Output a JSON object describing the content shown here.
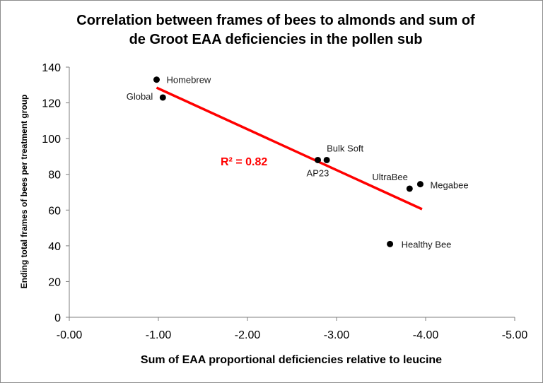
{
  "chart_data": {
    "type": "scatter",
    "title_line1": "Correlation between frames of bees to almonds and sum of",
    "title_line2": "de Groot EAA deficiencies in the pollen sub",
    "xlabel": "Sum of EAA proportional deficiencies relative to leucine",
    "ylabel": "Ending total frames of bees per treatment group",
    "xlim": [
      0,
      -5
    ],
    "ylim": [
      0,
      140
    ],
    "x_reversed": true,
    "x_ticks": [
      "-0.00",
      "-1.00",
      "-2.00",
      "-3.00",
      "-4.00",
      "-5.00"
    ],
    "y_ticks": [
      "0",
      "20",
      "40",
      "60",
      "80",
      "100",
      "120",
      "140"
    ],
    "points": [
      {
        "name": "Homebrew",
        "x": -0.98,
        "y": 133
      },
      {
        "name": "Global",
        "x": -1.05,
        "y": 123
      },
      {
        "name": "AP23",
        "x": -2.79,
        "y": 88
      },
      {
        "name": "Bulk Soft",
        "x": -2.89,
        "y": 88
      },
      {
        "name": "UltraBee",
        "x": -3.82,
        "y": 72
      },
      {
        "name": "Megabee",
        "x": -3.94,
        "y": 74.5
      },
      {
        "name": "Healthy Bee",
        "x": -3.6,
        "y": 41
      }
    ],
    "trendline": {
      "x_start": -0.98,
      "y_start": 128.5,
      "x_end": -3.96,
      "y_end": 60.5,
      "color": "#ff0000"
    },
    "annotation": "R² = 0.82",
    "annotation_color": "#ff0000",
    "point_color": "#000000",
    "grid": false,
    "legend": "none"
  }
}
